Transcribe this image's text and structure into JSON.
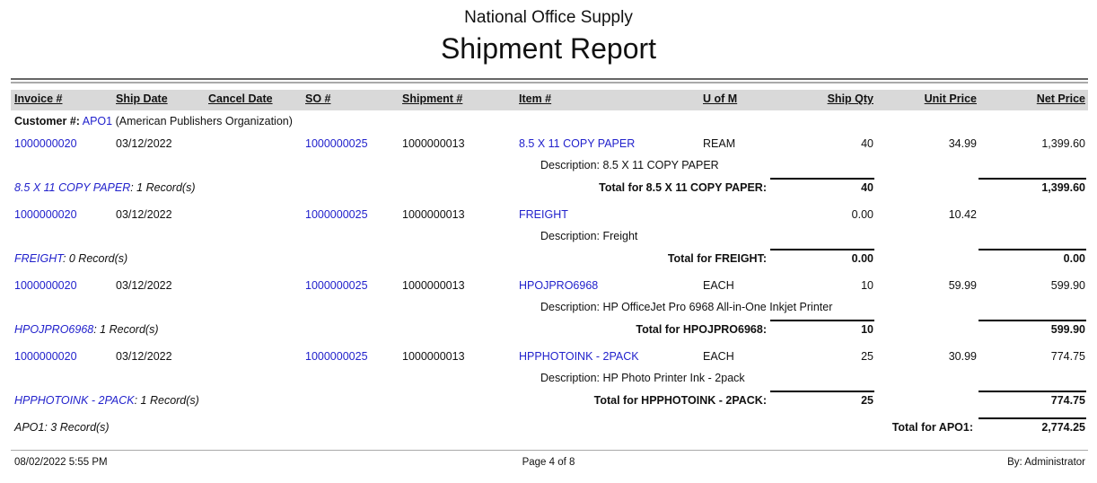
{
  "company": "National Office Supply",
  "title": "Shipment Report",
  "columns": [
    "Invoice #",
    "Ship Date",
    "Cancel Date",
    "SO #",
    "Shipment #",
    "Item #",
    "U of M",
    "Ship Qty",
    "Unit Price",
    "Net Price"
  ],
  "customer": {
    "label": "Customer #:",
    "code": "APO1",
    "name": "(American Publishers Organization)"
  },
  "groups": [
    {
      "invoice": "1000000020",
      "ship_date": "03/12/2022",
      "cancel_date": "",
      "so": "1000000025",
      "shipment": "1000000013",
      "item": "8.5 X 11 COPY PAPER",
      "uom": "REAM",
      "qty": "40",
      "unit_price": "34.99",
      "net_price": "1,399.60",
      "description": "Description: 8.5 X 11 COPY PAPER",
      "summary_item": "8.5 X 11 COPY PAPER",
      "summary_count": ": 1 Record(s)",
      "total_label": "Total for 8.5 X 11 COPY PAPER:",
      "total_qty": "40",
      "total_net": "1,399.60"
    },
    {
      "invoice": "1000000020",
      "ship_date": "03/12/2022",
      "cancel_date": "",
      "so": "1000000025",
      "shipment": "1000000013",
      "item": "FREIGHT",
      "uom": "",
      "qty": "0.00",
      "unit_price": "10.42",
      "net_price": "",
      "description": "Description: Freight",
      "summary_item": "FREIGHT",
      "summary_count": ": 0 Record(s)",
      "total_label": "Total for FREIGHT:",
      "total_qty": "0.00",
      "total_net": "0.00"
    },
    {
      "invoice": "1000000020",
      "ship_date": "03/12/2022",
      "cancel_date": "",
      "so": "1000000025",
      "shipment": "1000000013",
      "item": "HPOJPRO6968",
      "uom": "EACH",
      "qty": "10",
      "unit_price": "59.99",
      "net_price": "599.90",
      "description": "Description: HP OfficeJet Pro 6968 All-in-One Inkjet Printer",
      "summary_item": "HPOJPRO6968",
      "summary_count": ": 1 Record(s)",
      "total_label": "Total for HPOJPRO6968:",
      "total_qty": "10",
      "total_net": "599.90"
    },
    {
      "invoice": "1000000020",
      "ship_date": "03/12/2022",
      "cancel_date": "",
      "so": "1000000025",
      "shipment": "1000000013",
      "item": "HPPHOTOINK - 2PACK",
      "uom": "EACH",
      "qty": "25",
      "unit_price": "30.99",
      "net_price": "774.75",
      "description": "Description: HP Photo Printer Ink - 2pack",
      "summary_item": "HPPHOTOINK - 2PACK",
      "summary_count": ": 1 Record(s)",
      "total_label": "Total for HPPHOTOINK - 2PACK:",
      "total_qty": "25",
      "total_net": "774.75"
    }
  ],
  "customer_summary": {
    "count": "APO1: 3 Record(s)",
    "total_label": "Total for APO1:",
    "total_net": "2,774.25"
  },
  "footer": {
    "printed": "08/02/2022 5:55 PM",
    "page": "Page 4 of 8",
    "by": "By: Administrator"
  }
}
